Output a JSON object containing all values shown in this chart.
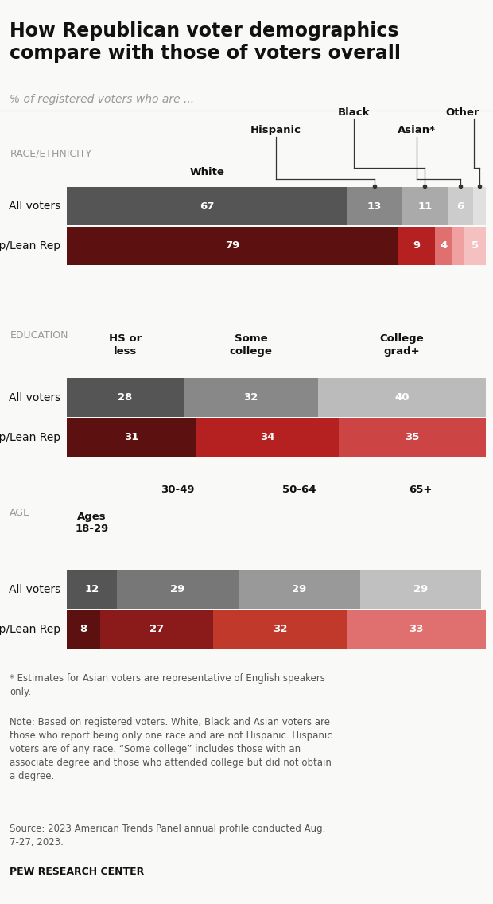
{
  "title": "How Republican voter demographics\ncompare with those of voters overall",
  "subtitle": "% of registered voters who are ...",
  "background_color": "#f9f9f7",
  "sections": {
    "race": {
      "label": "RACE/ETHNICITY",
      "rows": {
        "all_voters": {
          "label": "All voters",
          "values": [
            67,
            13,
            11,
            6,
            3
          ],
          "colors": [
            "#555555",
            "#888888",
            "#aaaaaa",
            "#cccccc",
            "#e0e0e0"
          ]
        },
        "rep": {
          "label": "Rep/Lean Rep",
          "values": [
            79,
            9,
            4,
            3,
            5
          ],
          "colors": [
            "#5c1010",
            "#b52020",
            "#e07070",
            "#f0a0a0",
            "#f5c0c0"
          ]
        }
      }
    },
    "education": {
      "label": "EDUCATION",
      "rows": {
        "all_voters": {
          "label": "All voters",
          "values": [
            28,
            32,
            40
          ],
          "colors": [
            "#555555",
            "#888888",
            "#bbbbbb"
          ]
        },
        "rep": {
          "label": "Rep/Lean Rep",
          "values": [
            31,
            34,
            35
          ],
          "colors": [
            "#5c1010",
            "#b52020",
            "#cc4444"
          ]
        }
      }
    },
    "age": {
      "label": "AGE",
      "rows": {
        "all_voters": {
          "label": "All voters",
          "values": [
            12,
            29,
            29,
            29
          ],
          "colors": [
            "#555555",
            "#777777",
            "#999999",
            "#c0c0c0"
          ]
        },
        "rep": {
          "label": "Rep/Lean Rep",
          "values": [
            8,
            27,
            32,
            33
          ],
          "colors": [
            "#5c1010",
            "#8b1a1a",
            "#c0392b",
            "#e07070"
          ]
        }
      }
    }
  },
  "footnote_star": "* Estimates for Asian voters are representative of English speakers\nonly.",
  "footnote_note": "Note: Based on registered voters. White, Black and Asian voters are\nthose who report being only one race and are not Hispanic. Hispanic\nvoters are of any race. “Some college” includes those with an\nassociate degree and those who attended college but did not obtain\na degree.",
  "footnote_source": "Source: 2023 American Trends Panel annual profile conducted Aug.\n7-27, 2023.",
  "footnote_pew": "PEW RESEARCH CENTER"
}
